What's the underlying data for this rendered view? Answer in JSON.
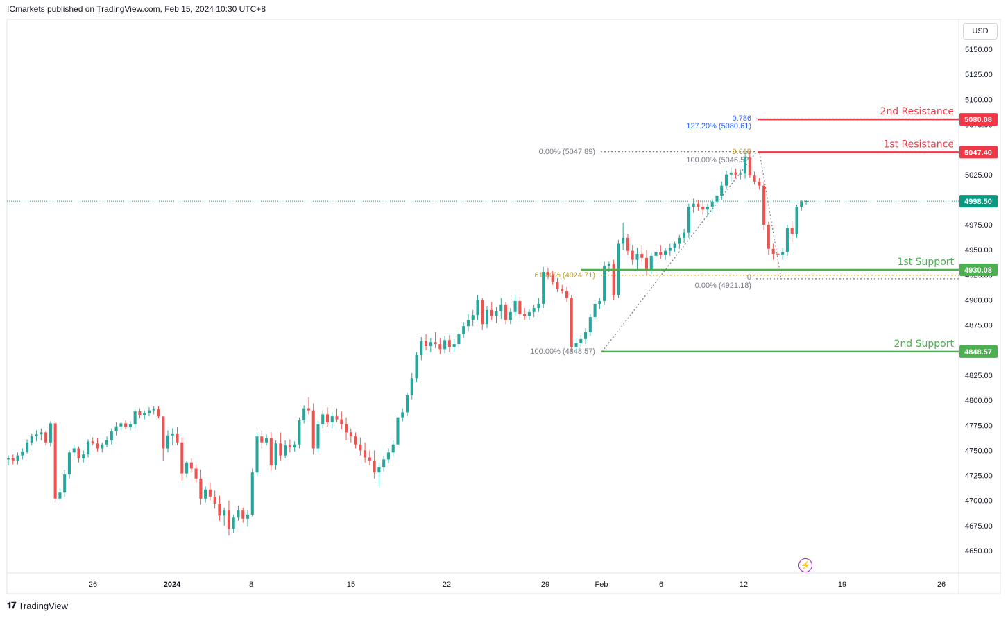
{
  "header": {
    "published_by": "ICmarkets published on TradingView.com, Feb 15, 2024 10:30 UTC+8"
  },
  "footer": {
    "brand": "TradingView"
  },
  "toolbar": {
    "currency": "USD"
  },
  "colors": {
    "up": "#26a69a",
    "down": "#ef5350",
    "resistance": "#f23645",
    "support": "#4caf50",
    "last_price": "#089981",
    "fib_gold": "#c49a15",
    "fib_blue": "#2962ff",
    "fib_gray": "#787b86"
  },
  "chart_data": {
    "type": "candlestick",
    "y_axis": {
      "ylim": [
        4637,
        5176
      ],
      "ticks": [
        5150,
        5125,
        5100,
        5075,
        5050,
        5025,
        5000,
        4975,
        4950,
        4925,
        4900,
        4875,
        4850,
        4825,
        4800,
        4775,
        4750,
        4725,
        4700,
        4675,
        4650
      ],
      "tick_labels": [
        "5150.00",
        "5125.00",
        "5100.00",
        "5075.00",
        "5050.00",
        "5025.00",
        "5000.00",
        "4975.00",
        "4950.00",
        "4925.00",
        "4900.00",
        "4875.00",
        "4850.00",
        "4825.00",
        "4800.00",
        "4775.00",
        "4750.00",
        "4725.00",
        "4700.00",
        "4675.00",
        "4650.00"
      ]
    },
    "x_axis": {
      "labels": [
        "26",
        "2024",
        "8",
        "15",
        "22",
        "29",
        "Feb",
        "6",
        "12",
        "19",
        "26"
      ]
    },
    "levels": [
      {
        "name": "2nd Resistance",
        "value": 5080.08,
        "tag": "5080.08",
        "kind": "resistance"
      },
      {
        "name": "1st Resistance",
        "value": 5047.4,
        "tag": "5047.40",
        "kind": "resistance"
      },
      {
        "name": "1st Support",
        "value": 4930.08,
        "tag": "4930.08",
        "kind": "support"
      },
      {
        "name": "2nd Support",
        "value": 4848.57,
        "tag": "4848.57",
        "kind": "support"
      }
    ],
    "last_price": {
      "value": 4998.5,
      "tag": "4998.50"
    },
    "fib_labels": {
      "ext_786": "0.786",
      "ext_127": "127.20% (5080.61)",
      "ret_0_top": "0.00% (5047.89)",
      "ret_618": "0.618",
      "ret_100_top": "100.00% (5046.52)",
      "ret_618_left": "61.80% (4924.71)",
      "ret_0_low": "0",
      "ret_0_low_value": "0.00% (4921.18)",
      "ret_100_bottom": "100.00% (4848.57)"
    },
    "candles": [
      [
        4741,
        4745,
        4735,
        4742
      ],
      [
        4742,
        4746,
        4736,
        4740
      ],
      [
        4740,
        4748,
        4736,
        4745
      ],
      [
        4745,
        4752,
        4741,
        4749
      ],
      [
        4749,
        4761,
        4747,
        4758
      ],
      [
        4758,
        4767,
        4755,
        4764
      ],
      [
        4764,
        4770,
        4759,
        4766
      ],
      [
        4766,
        4772,
        4760,
        4768
      ],
      [
        4768,
        4770,
        4755,
        4758
      ],
      [
        4758,
        4779,
        4754,
        4777
      ],
      [
        4777,
        4779,
        4698,
        4702
      ],
      [
        4702,
        4712,
        4700,
        4708
      ],
      [
        4708,
        4731,
        4704,
        4726
      ],
      [
        4726,
        4750,
        4722,
        4748
      ],
      [
        4748,
        4756,
        4744,
        4752
      ],
      [
        4752,
        4754,
        4738,
        4742
      ],
      [
        4742,
        4750,
        4738,
        4746
      ],
      [
        4746,
        4761,
        4743,
        4759
      ],
      [
        4759,
        4763,
        4755,
        4757
      ],
      [
        4757,
        4762,
        4749,
        4752
      ],
      [
        4752,
        4758,
        4748,
        4756
      ],
      [
        4756,
        4764,
        4753,
        4760
      ],
      [
        4760,
        4772,
        4756,
        4769
      ],
      [
        4769,
        4778,
        4765,
        4774
      ],
      [
        4774,
        4778,
        4770,
        4777
      ],
      [
        4777,
        4780,
        4771,
        4773
      ],
      [
        4773,
        4779,
        4770,
        4776
      ],
      [
        4776,
        4791,
        4772,
        4789
      ],
      [
        4789,
        4792,
        4782,
        4785
      ],
      [
        4785,
        4790,
        4781,
        4787
      ],
      [
        4787,
        4793,
        4784,
        4790
      ],
      [
        4790,
        4794,
        4786,
        4791
      ],
      [
        4791,
        4794,
        4782,
        4784
      ],
      [
        4784,
        4781,
        4740,
        4752
      ],
      [
        4752,
        4770,
        4748,
        4765
      ],
      [
        4765,
        4772,
        4755,
        4767
      ],
      [
        4767,
        4773,
        4755,
        4758
      ],
      [
        4758,
        4763,
        4720,
        4727
      ],
      [
        4727,
        4740,
        4723,
        4738
      ],
      [
        4738,
        4742,
        4728,
        4732
      ],
      [
        4732,
        4736,
        4718,
        4722
      ],
      [
        4722,
        4731,
        4696,
        4702
      ],
      [
        4702,
        4714,
        4698,
        4711
      ],
      [
        4711,
        4718,
        4700,
        4704
      ],
      [
        4704,
        4710,
        4692,
        4697
      ],
      [
        4697,
        4705,
        4680,
        4685
      ],
      [
        4685,
        4693,
        4675,
        4690
      ],
      [
        4690,
        4700,
        4665,
        4672
      ],
      [
        4672,
        4686,
        4668,
        4683
      ],
      [
        4683,
        4695,
        4680,
        4690
      ],
      [
        4690,
        4693,
        4678,
        4682
      ],
      [
        4682,
        4690,
        4674,
        4686
      ],
      [
        4686,
        4732,
        4684,
        4728
      ],
      [
        4728,
        4768,
        4725,
        4764
      ],
      [
        4764,
        4770,
        4752,
        4758
      ],
      [
        4758,
        4766,
        4755,
        4762
      ],
      [
        4762,
        4768,
        4730,
        4735
      ],
      [
        4735,
        4760,
        4731,
        4757
      ],
      [
        4757,
        4768,
        4740,
        4745
      ],
      [
        4745,
        4760,
        4742,
        4755
      ],
      [
        4755,
        4761,
        4748,
        4753
      ],
      [
        4753,
        4759,
        4749,
        4756
      ],
      [
        4756,
        4783,
        4752,
        4780
      ],
      [
        4780,
        4795,
        4777,
        4792
      ],
      [
        4792,
        4803,
        4786,
        4790
      ],
      [
        4790,
        4797,
        4746,
        4752
      ],
      [
        4752,
        4779,
        4748,
        4776
      ],
      [
        4776,
        4790,
        4772,
        4786
      ],
      [
        4786,
        4793,
        4774,
        4778
      ],
      [
        4778,
        4788,
        4772,
        4784
      ],
      [
        4784,
        4792,
        4778,
        4781
      ],
      [
        4781,
        4789,
        4771,
        4776
      ],
      [
        4776,
        4783,
        4760,
        4768
      ],
      [
        4768,
        4772,
        4758,
        4764
      ],
      [
        4764,
        4768,
        4752,
        4756
      ],
      [
        4756,
        4763,
        4745,
        4750
      ],
      [
        4750,
        4758,
        4738,
        4743
      ],
      [
        4743,
        4750,
        4735,
        4740
      ],
      [
        4740,
        4750,
        4722,
        4728
      ],
      [
        4728,
        4738,
        4714,
        4733
      ],
      [
        4733,
        4745,
        4729,
        4741
      ],
      [
        4741,
        4752,
        4737,
        4748
      ],
      [
        4748,
        4760,
        4744,
        4756
      ],
      [
        4756,
        4786,
        4752,
        4783
      ],
      [
        4783,
        4792,
        4779,
        4788
      ],
      [
        4788,
        4808,
        4784,
        4805
      ],
      [
        4805,
        4827,
        4801,
        4822
      ],
      [
        4822,
        4848,
        4818,
        4845
      ],
      [
        4845,
        4863,
        4840,
        4859
      ],
      [
        4859,
        4866,
        4850,
        4854
      ],
      [
        4854,
        4862,
        4848,
        4858
      ],
      [
        4858,
        4868,
        4852,
        4856
      ],
      [
        4856,
        4862,
        4846,
        4851
      ],
      [
        4851,
        4864,
        4847,
        4860
      ],
      [
        4860,
        4865,
        4848,
        4853
      ],
      [
        4853,
        4861,
        4848,
        4856
      ],
      [
        4856,
        4870,
        4852,
        4866
      ],
      [
        4866,
        4878,
        4862,
        4874
      ],
      [
        4874,
        4886,
        4869,
        4880
      ],
      [
        4880,
        4890,
        4874,
        4885
      ],
      [
        4885,
        4905,
        4880,
        4900
      ],
      [
        4900,
        4902,
        4870,
        4876
      ],
      [
        4876,
        4894,
        4872,
        4890
      ],
      [
        4890,
        4898,
        4880,
        4884
      ],
      [
        4884,
        4893,
        4877,
        4889
      ],
      [
        4889,
        4902,
        4881,
        4895
      ],
      [
        4895,
        4898,
        4876,
        4880
      ],
      [
        4880,
        4892,
        4876,
        4888
      ],
      [
        4888,
        4905,
        4884,
        4899
      ],
      [
        4899,
        4903,
        4882,
        4886
      ],
      [
        4886,
        4892,
        4880,
        4884
      ],
      [
        4884,
        4891,
        4880,
        4888
      ],
      [
        4888,
        4895,
        4883,
        4892
      ],
      [
        4892,
        4902,
        4888,
        4896
      ],
      [
        4896,
        4933,
        4892,
        4928
      ],
      [
        4928,
        4932,
        4921,
        4925
      ],
      [
        4925,
        4929,
        4915,
        4918
      ],
      [
        4918,
        4922,
        4908,
        4911
      ],
      [
        4911,
        4915,
        4906,
        4909
      ],
      [
        4909,
        4913,
        4898,
        4902
      ],
      [
        4902,
        4905,
        4848,
        4853
      ],
      [
        4853,
        4862,
        4849,
        4857
      ],
      [
        4857,
        4865,
        4853,
        4861
      ],
      [
        4861,
        4872,
        4856,
        4868
      ],
      [
        4868,
        4886,
        4864,
        4883
      ],
      [
        4883,
        4900,
        4879,
        4896
      ],
      [
        4896,
        4902,
        4891,
        4899
      ],
      [
        4899,
        4938,
        4895,
        4934
      ],
      [
        4934,
        4938,
        4928,
        4936
      ],
      [
        4936,
        4940,
        4900,
        4905
      ],
      [
        4905,
        4960,
        4902,
        4956
      ],
      [
        4956,
        4977,
        4950,
        4962
      ],
      [
        4962,
        4966,
        4945,
        4949
      ],
      [
        4949,
        4955,
        4935,
        4940
      ],
      [
        4940,
        4952,
        4930,
        4946
      ],
      [
        4946,
        4955,
        4938,
        4942
      ],
      [
        4942,
        4950,
        4925,
        4930
      ],
      [
        4930,
        4947,
        4926,
        4944
      ],
      [
        4944,
        4952,
        4938,
        4948
      ],
      [
        4948,
        4955,
        4941,
        4945
      ],
      [
        4945,
        4952,
        4940,
        4949
      ],
      [
        4949,
        4956,
        4944,
        4952
      ],
      [
        4952,
        4958,
        4948,
        4956
      ],
      [
        4956,
        4965,
        4951,
        4962
      ],
      [
        4962,
        4971,
        4957,
        4967
      ],
      [
        4967,
        4996,
        4962,
        4993
      ],
      [
        4993,
        5001,
        4987,
        4996
      ],
      [
        4996,
        5000,
        4989,
        4993
      ],
      [
        4993,
        4998,
        4985,
        4990
      ],
      [
        4990,
        4996,
        4983,
        4993
      ],
      [
        4993,
        5001,
        4987,
        4998
      ],
      [
        4998,
        5008,
        4994,
        5004
      ],
      [
        5004,
        5018,
        5000,
        5014
      ],
      [
        5014,
        5029,
        5010,
        5025
      ],
      [
        5025,
        5032,
        5018,
        5027
      ],
      [
        5027,
        5031,
        5021,
        5025
      ],
      [
        5025,
        5030,
        5020,
        5026
      ],
      [
        5026,
        5046,
        5021,
        5042
      ],
      [
        5042,
        5049,
        5022,
        5024
      ],
      [
        5024,
        5028,
        5015,
        5018
      ],
      [
        5018,
        5022,
        5010,
        5014
      ],
      [
        5014,
        5018,
        4970,
        4975
      ],
      [
        4975,
        4978,
        4945,
        4951
      ],
      [
        4951,
        4956,
        4940,
        4946
      ],
      [
        4946,
        4952,
        4921,
        4945
      ],
      [
        4945,
        4952,
        4940,
        4948
      ],
      [
        4948,
        4975,
        4944,
        4972
      ],
      [
        4972,
        4979,
        4958,
        4966
      ],
      [
        4966,
        4995,
        4962,
        4993
      ],
      [
        4993,
        5000,
        4989,
        4998
      ],
      [
        4998,
        5000,
        4995,
        4998.5
      ]
    ]
  }
}
